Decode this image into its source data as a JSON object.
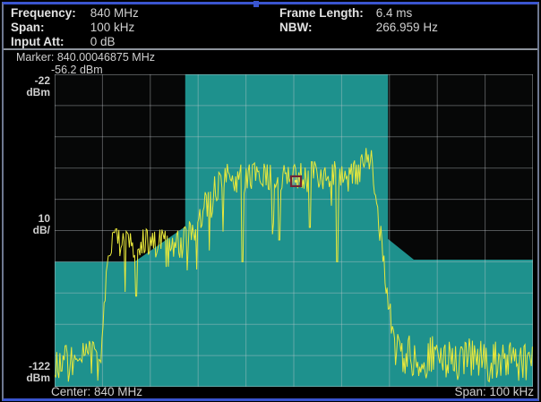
{
  "header": {
    "left": [
      {
        "label": "Frequency:",
        "value": "840 MHz"
      },
      {
        "label": "Span:",
        "value": "100 kHz"
      },
      {
        "label": "Input Att:",
        "value": "0 dB"
      }
    ],
    "right": [
      {
        "label": "Frame Length:",
        "value": "6.4 ms"
      },
      {
        "label": "NBW:",
        "value": "266.959 Hz"
      }
    ]
  },
  "marker_readout": {
    "label": "Marker:",
    "frequency": "840.00046875 MHz",
    "amplitude": "-56.2 dBm"
  },
  "y_axis_labels": {
    "top": "-22",
    "top_unit": "dBm",
    "mid": "10",
    "mid_unit": "dB/",
    "bottom": "-122",
    "bottom_unit": "dBm"
  },
  "footer": {
    "center": "Center: 840 MHz",
    "span": "Span: 100 kHz"
  },
  "colors": {
    "border_blue": "#3a55cf",
    "panel_text": "#d4d4d4",
    "separator_gray": "#8e949c",
    "mask_teal": "#1e918d",
    "trace_yellow": "#e9e83b",
    "marker_maroon": "#702536"
  },
  "chart_data": {
    "type": "line",
    "x_axis": {
      "center": "840 MHz",
      "span": "100 kHz",
      "min_khz": -50,
      "max_khz": 50,
      "divisions": 10
    },
    "y_axis": {
      "top_dbm": -22,
      "bottom_dbm": -122,
      "db_per_div": 10
    },
    "grid": {
      "rows": 10,
      "cols": 10
    },
    "marker": {
      "khz_offset": 0.46875,
      "dbm": -56.2,
      "frequency": "840.00046875 MHz",
      "amplitude": "-56.2 dBm"
    },
    "mask": {
      "color": "#1e918d",
      "limit_points_khz_dbm": [
        [
          -50,
          -82
        ],
        [
          -33.3,
          -82
        ],
        [
          -22.7,
          -70.7
        ],
        [
          -22.7,
          -22
        ],
        [
          19.7,
          -22
        ],
        [
          19.7,
          -74.7
        ],
        [
          25.1,
          -81.3
        ],
        [
          50,
          -81.3
        ]
      ]
    },
    "trace": {
      "color": "#e9e83b",
      "floor_dbm": -122,
      "sample_step_khz": 0.22,
      "noise_seed": 9,
      "envelope_khz_dbm": [
        [
          -50,
          -114
        ],
        [
          -40.3,
          -114
        ],
        [
          -38.8,
          -76
        ],
        [
          -22.8,
          -76
        ],
        [
          -14.5,
          -55.5
        ],
        [
          13.5,
          -54.5
        ],
        [
          14.8,
          -48.5
        ],
        [
          16.2,
          -49.5
        ],
        [
          21.2,
          -112
        ],
        [
          50,
          -114
        ]
      ],
      "jitter_segments": [
        {
          "from": -50,
          "to": -40.3,
          "jitter_db": 7,
          "dip_prob": 0.02,
          "dip_db": 6
        },
        {
          "from": -40.3,
          "to": -38.8,
          "jitter_db": 4,
          "dip_prob": 0,
          "dip_db": 0
        },
        {
          "from": -38.8,
          "to": -22.8,
          "jitter_db": 5,
          "dip_prob": 0.06,
          "dip_db": 12
        },
        {
          "from": -22.8,
          "to": -14.5,
          "jitter_db": 6,
          "dip_prob": 0.1,
          "dip_db": 14
        },
        {
          "from": -14.5,
          "to": 13.5,
          "jitter_db": 5,
          "dip_prob": 0.07,
          "dip_db": 18
        },
        {
          "from": 13.5,
          "to": 16.2,
          "jitter_db": 3.5,
          "dip_prob": 0,
          "dip_db": 0
        },
        {
          "from": 16.2,
          "to": 21.2,
          "jitter_db": 4,
          "dip_prob": 0,
          "dip_db": 0
        },
        {
          "from": 21.2,
          "to": 50,
          "jitter_db": 7,
          "dip_prob": 0.02,
          "dip_db": 6
        }
      ],
      "notable_dips_khz_dbm": [
        [
          -33,
          -93
        ],
        [
          -10.7,
          -82
        ],
        [
          -3,
          -75
        ],
        [
          3.3,
          -71
        ],
        [
          9.1,
          -82
        ]
      ]
    }
  }
}
